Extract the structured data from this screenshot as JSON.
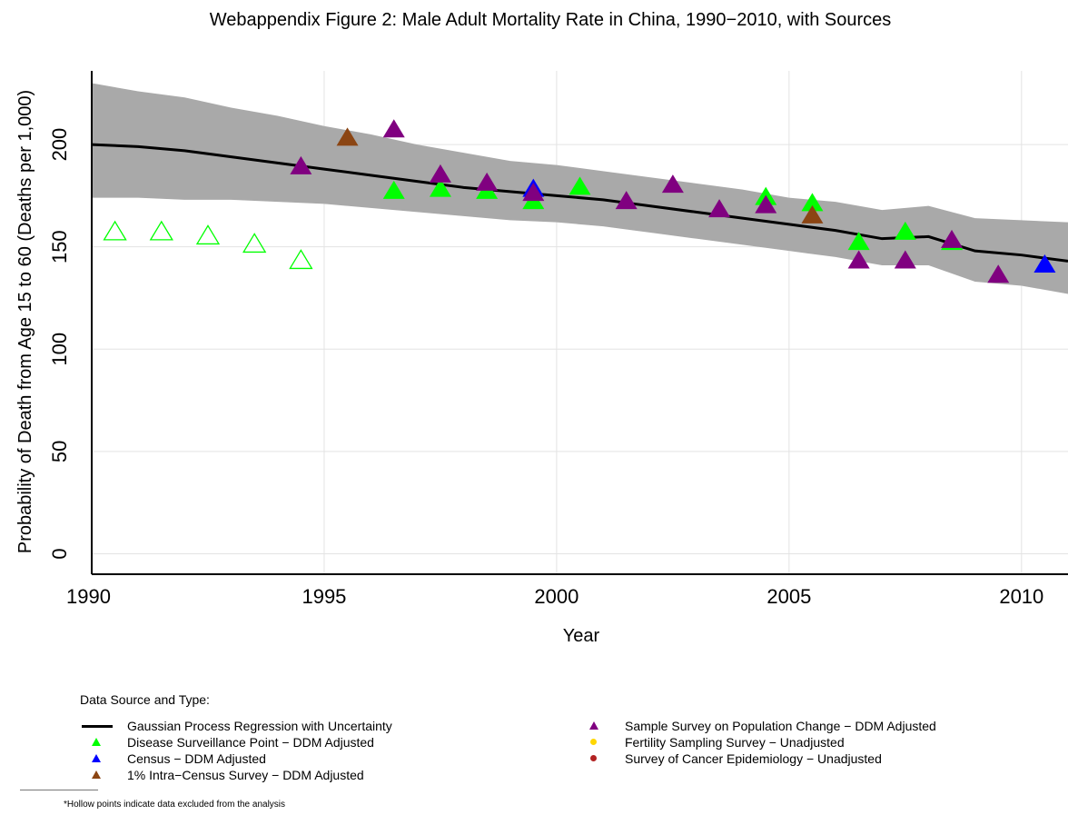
{
  "chart_data": {
    "type": "scatter",
    "title": "Webappendix Figure 2: Male Adult Mortality Rate in China, 1990−2010, with Sources",
    "xlabel": "Year",
    "ylabel": "Probability of Death from Age 15 to 60 (Deaths per 1,000)",
    "xlim": [
      1990,
      2011
    ],
    "ylim": [
      -10,
      236
    ],
    "x_ticks": [
      "1990",
      "1995",
      "2000",
      "2005",
      "2010"
    ],
    "y_ticks": [
      "0",
      "50",
      "100",
      "150",
      "200"
    ],
    "grid": true,
    "legend_title": "Data Source and Type:",
    "legend_position": "bottom",
    "regression": {
      "name": "Gaussian Process Regression with Uncertainty",
      "color": "#000000",
      "band_color": "#a9a9a9",
      "x": [
        1990,
        1991,
        1992,
        1993,
        1994,
        1995,
        1996,
        1997,
        1998,
        1999,
        2000,
        2001,
        2002,
        2003,
        2004,
        2005,
        2006,
        2007,
        2008,
        2009,
        2010,
        2011
      ],
      "mean": [
        200,
        199,
        197,
        194,
        191,
        188,
        185,
        182,
        179,
        177,
        175,
        173,
        170,
        167,
        164,
        161,
        158,
        154,
        155,
        148,
        146,
        143
      ],
      "lower": [
        174,
        174,
        173,
        173,
        172,
        171,
        169,
        167,
        165,
        163,
        162,
        160,
        157,
        154,
        151,
        148,
        145,
        141,
        141,
        133,
        131,
        127
      ],
      "upper": [
        230,
        226,
        223,
        218,
        214,
        209,
        205,
        200,
        196,
        192,
        190,
        187,
        184,
        181,
        178,
        174,
        172,
        168,
        170,
        164,
        163,
        162
      ]
    },
    "series": [
      {
        "name": "Disease Surveillance Point − DDM Adjusted",
        "color": "#00ff00",
        "marker": "triangle",
        "points": [
          [
            1996.5,
            177
          ],
          [
            1997.5,
            178
          ],
          [
            1998.5,
            177
          ],
          [
            1999.5,
            172
          ],
          [
            2000.5,
            179
          ],
          [
            2004.5,
            174
          ],
          [
            2005.5,
            171
          ],
          [
            2006.5,
            152
          ],
          [
            2007.5,
            157
          ],
          [
            2008.5,
            152
          ]
        ]
      },
      {
        "name": "Disease Surveillance Point − DDM Adjusted (excluded)",
        "color": "#00ff00",
        "marker": "triangle-hollow",
        "points": [
          [
            1990.5,
            157
          ],
          [
            1991.5,
            157
          ],
          [
            1992.5,
            155
          ],
          [
            1993.5,
            151
          ],
          [
            1994.5,
            143
          ]
        ]
      },
      {
        "name": "Census − DDM Adjusted",
        "color": "#0000ff",
        "marker": "triangle",
        "points": [
          [
            1999.5,
            178
          ],
          [
            2010.5,
            141
          ]
        ]
      },
      {
        "name": "1% Intra−Census Survey − DDM Adjusted",
        "color": "#8b4513",
        "marker": "triangle",
        "points": [
          [
            1995.5,
            203
          ],
          [
            2005.5,
            165
          ]
        ]
      },
      {
        "name": "Sample Survey on Population Change − DDM Adjusted",
        "color": "#800080",
        "marker": "triangle",
        "points": [
          [
            1994.5,
            189
          ],
          [
            1996.5,
            207
          ],
          [
            1997.5,
            185
          ],
          [
            1998.5,
            181
          ],
          [
            1999.5,
            176
          ],
          [
            2001.5,
            172
          ],
          [
            2002.5,
            180
          ],
          [
            2003.5,
            168
          ],
          [
            2004.5,
            170
          ],
          [
            2006.5,
            143
          ],
          [
            2007.5,
            143
          ],
          [
            2008.5,
            153
          ],
          [
            2009.5,
            136
          ]
        ]
      },
      {
        "name": "Fertility Sampling Survey − Unadjusted",
        "color": "#ffd700",
        "marker": "dot",
        "points": []
      },
      {
        "name": "Survey of Cancer Epidemiology − Unadjusted",
        "color": "#b22222",
        "marker": "dot",
        "points": []
      }
    ]
  },
  "legend": {
    "left": [
      {
        "label": "Gaussian Process Regression with Uncertainty",
        "symbol": "line",
        "color": "#000000"
      },
      {
        "label": "Disease Surveillance Point − DDM Adjusted",
        "symbol": "triangle",
        "color": "#00ff00"
      },
      {
        "label": "Census − DDM Adjusted",
        "symbol": "triangle",
        "color": "#0000ff"
      },
      {
        "label": "1% Intra−Census Survey − DDM Adjusted",
        "symbol": "triangle",
        "color": "#8b4513"
      }
    ],
    "right": [
      {
        "label": "Sample Survey on Population Change − DDM Adjusted",
        "symbol": "triangle",
        "color": "#800080"
      },
      {
        "label": "Fertility Sampling Survey − Unadjusted",
        "symbol": "dot",
        "color": "#ffd700"
      },
      {
        "label": "Survey of Cancer Epidemiology − Unadjusted",
        "symbol": "dot",
        "color": "#b22222"
      }
    ]
  },
  "footnote": "*Hollow points indicate data excluded from the analysis"
}
